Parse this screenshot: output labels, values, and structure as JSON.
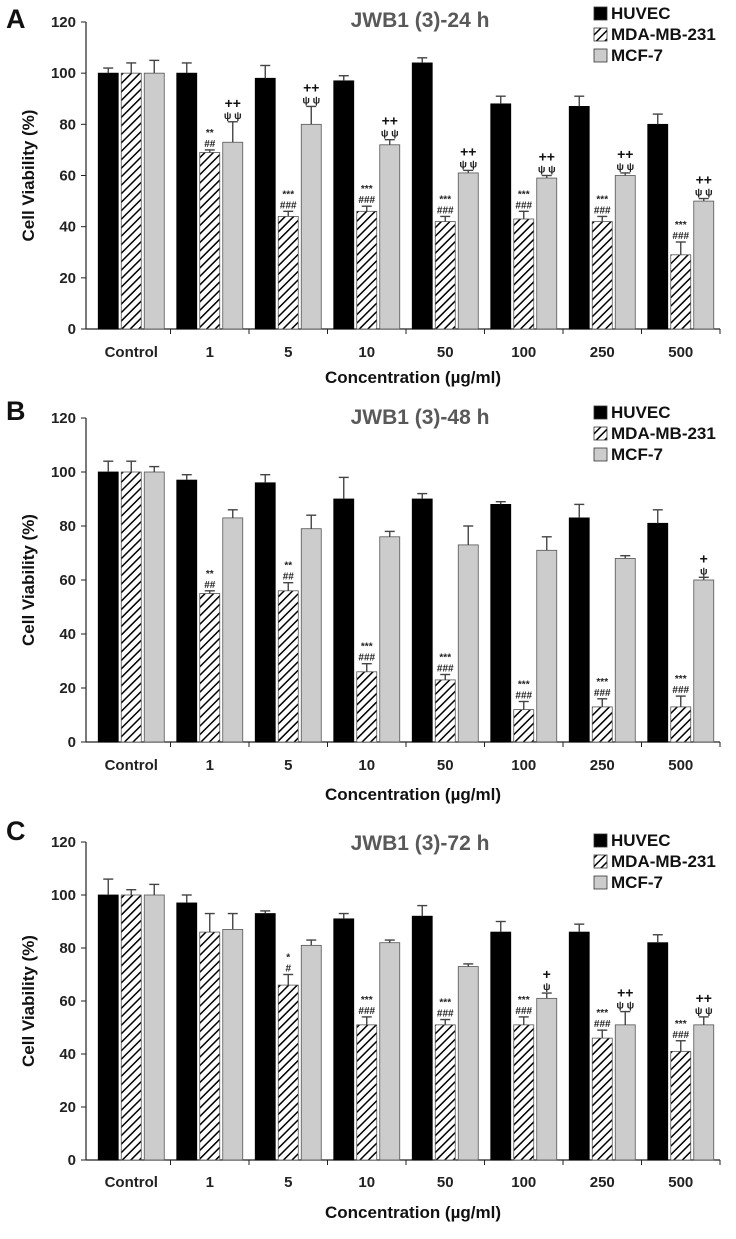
{
  "colors": {
    "huvec": "#000000",
    "mda": "#ffffff",
    "mcf": "#cccccc",
    "axis": "#222222"
  },
  "chart_data": [
    {
      "panel": "A",
      "type": "bar",
      "title": "JWB1 (3)-24 h",
      "xlabel": "Concentration (µg/ml)",
      "ylabel": "Cell Viability (%)",
      "ylim": [
        0,
        120
      ],
      "yticks": [
        "0",
        "20",
        "40",
        "60",
        "80",
        "100",
        "120"
      ],
      "categories": [
        "Control",
        "1",
        "5",
        "10",
        "50",
        "100",
        "250",
        "500"
      ],
      "series": [
        {
          "name": "HUVEC",
          "values": [
            100,
            100,
            98,
            97,
            104,
            88,
            87,
            80
          ],
          "errors": [
            2,
            4,
            5,
            2,
            2,
            3,
            4,
            4
          ]
        },
        {
          "name": "MDA-MB-231",
          "values": [
            100,
            69,
            44,
            46,
            42,
            43,
            42,
            29
          ],
          "errors": [
            4,
            1,
            2,
            2,
            2,
            3,
            2,
            5
          ]
        },
        {
          "name": "MCF-7",
          "values": [
            100,
            73,
            80,
            72,
            61,
            59,
            60,
            50
          ],
          "errors": [
            5,
            8,
            7,
            2,
            1,
            1,
            1,
            1
          ]
        }
      ],
      "annotations": [
        {
          "cat": 1,
          "series": 1,
          "lines": [
            "**",
            "##"
          ]
        },
        {
          "cat": 2,
          "series": 1,
          "lines": [
            "***",
            "###"
          ]
        },
        {
          "cat": 3,
          "series": 1,
          "lines": [
            "***",
            "###"
          ]
        },
        {
          "cat": 4,
          "series": 1,
          "lines": [
            "***",
            "###"
          ]
        },
        {
          "cat": 5,
          "series": 1,
          "lines": [
            "***",
            "###"
          ]
        },
        {
          "cat": 6,
          "series": 1,
          "lines": [
            "***",
            "###"
          ]
        },
        {
          "cat": 7,
          "series": 1,
          "lines": [
            "***",
            "###"
          ]
        },
        {
          "cat": 1,
          "series": 2,
          "lines": [
            "++",
            "ψ ψ"
          ]
        },
        {
          "cat": 2,
          "series": 2,
          "lines": [
            "++",
            "ψ ψ"
          ]
        },
        {
          "cat": 3,
          "series": 2,
          "lines": [
            "++",
            "ψ ψ"
          ]
        },
        {
          "cat": 4,
          "series": 2,
          "lines": [
            "++",
            "ψ ψ"
          ]
        },
        {
          "cat": 5,
          "series": 2,
          "lines": [
            "++",
            "ψ ψ"
          ]
        },
        {
          "cat": 6,
          "series": 2,
          "lines": [
            "++",
            "ψ ψ"
          ]
        },
        {
          "cat": 7,
          "series": 2,
          "lines": [
            "++",
            "ψ ψ"
          ]
        }
      ]
    },
    {
      "panel": "B",
      "type": "bar",
      "title": "JWB1 (3)-48 h",
      "xlabel": "Concentration (µg/ml)",
      "ylabel": "Cell Viability (%)",
      "ylim": [
        0,
        120
      ],
      "yticks": [
        "0",
        "20",
        "40",
        "60",
        "80",
        "100",
        "120"
      ],
      "categories": [
        "Control",
        "1",
        "5",
        "10",
        "50",
        "100",
        "250",
        "500"
      ],
      "series": [
        {
          "name": "HUVEC",
          "values": [
            100,
            97,
            96,
            90,
            90,
            88,
            83,
            81
          ],
          "errors": [
            4,
            2,
            3,
            8,
            2,
            1,
            5,
            5
          ]
        },
        {
          "name": "MDA-MB-231",
          "values": [
            100,
            55,
            56,
            26,
            23,
            12,
            13,
            13
          ],
          "errors": [
            4,
            1,
            3,
            3,
            2,
            3,
            3,
            4
          ]
        },
        {
          "name": "MCF-7",
          "values": [
            100,
            83,
            79,
            76,
            73,
            71,
            68,
            60
          ],
          "errors": [
            2,
            3,
            5,
            2,
            7,
            5,
            1,
            1
          ]
        }
      ],
      "annotations": [
        {
          "cat": 1,
          "series": 1,
          "lines": [
            "**",
            "##"
          ]
        },
        {
          "cat": 2,
          "series": 1,
          "lines": [
            "**",
            "##"
          ]
        },
        {
          "cat": 3,
          "series": 1,
          "lines": [
            "***",
            "###"
          ]
        },
        {
          "cat": 4,
          "series": 1,
          "lines": [
            "***",
            "###"
          ]
        },
        {
          "cat": 5,
          "series": 1,
          "lines": [
            "***",
            "###"
          ]
        },
        {
          "cat": 6,
          "series": 1,
          "lines": [
            "***",
            "###"
          ]
        },
        {
          "cat": 7,
          "series": 1,
          "lines": [
            "***",
            "###"
          ]
        },
        {
          "cat": 7,
          "series": 2,
          "lines": [
            "+",
            "ψ"
          ]
        }
      ]
    },
    {
      "panel": "C",
      "type": "bar",
      "title": "JWB1 (3)-72 h",
      "xlabel": "Concentration (µg/ml)",
      "ylabel": "Cell Viability (%)",
      "ylim": [
        0,
        120
      ],
      "yticks": [
        "0",
        "20",
        "40",
        "60",
        "80",
        "100",
        "120"
      ],
      "categories": [
        "Control",
        "1",
        "5",
        "10",
        "50",
        "100",
        "250",
        "500"
      ],
      "series": [
        {
          "name": "HUVEC",
          "values": [
            100,
            97,
            93,
            91,
            92,
            86,
            86,
            82
          ],
          "errors": [
            6,
            3,
            1,
            2,
            4,
            4,
            3,
            3
          ]
        },
        {
          "name": "MDA-MB-231",
          "values": [
            100,
            86,
            66,
            51,
            51,
            51,
            46,
            41
          ],
          "errors": [
            2,
            7,
            4,
            3,
            2,
            3,
            3,
            4
          ]
        },
        {
          "name": "MCF-7",
          "values": [
            100,
            87,
            81,
            82,
            73,
            61,
            51,
            51
          ],
          "errors": [
            4,
            6,
            2,
            1,
            1,
            2,
            5,
            3
          ]
        }
      ],
      "annotations": [
        {
          "cat": 2,
          "series": 1,
          "lines": [
            "*",
            "#"
          ]
        },
        {
          "cat": 3,
          "series": 1,
          "lines": [
            "***",
            "###"
          ]
        },
        {
          "cat": 4,
          "series": 1,
          "lines": [
            "***",
            "###"
          ]
        },
        {
          "cat": 5,
          "series": 1,
          "lines": [
            "***",
            "###"
          ]
        },
        {
          "cat": 6,
          "series": 1,
          "lines": [
            "***",
            "###"
          ]
        },
        {
          "cat": 7,
          "series": 1,
          "lines": [
            "***",
            "###"
          ]
        },
        {
          "cat": 5,
          "series": 2,
          "lines": [
            "+",
            "ψ"
          ]
        },
        {
          "cat": 6,
          "series": 2,
          "lines": [
            "++",
            "ψ ψ"
          ]
        },
        {
          "cat": 7,
          "series": 2,
          "lines": [
            "++",
            "ψ ψ"
          ]
        }
      ]
    }
  ]
}
